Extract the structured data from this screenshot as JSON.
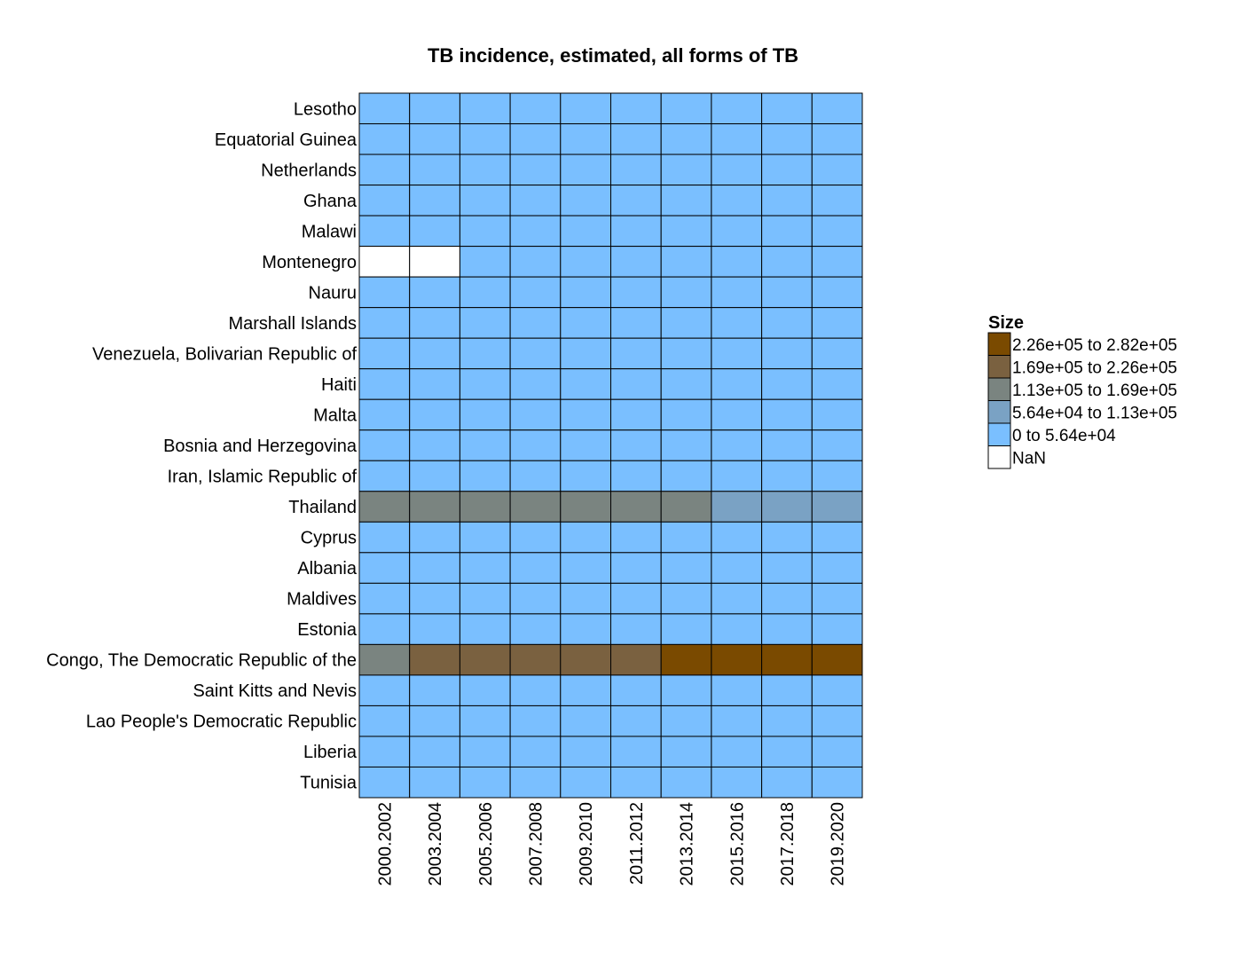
{
  "chart_data": {
    "type": "heatmap",
    "title": "TB incidence, estimated, all forms of TB",
    "xlabel": "",
    "ylabel": "",
    "columns": [
      "2000.2002",
      "2003.2004",
      "2005.2006",
      "2007.2008",
      "2009.2010",
      "2011.2012",
      "2013.2014",
      "2015.2016",
      "2017.2018",
      "2019.2020"
    ],
    "rows": [
      "Lesotho",
      "Equatorial Guinea",
      "Netherlands",
      "Ghana",
      "Malawi",
      "Montenegro",
      "Nauru",
      "Marshall Islands",
      "Venezuela, Bolivarian Republic of",
      "Haiti",
      "Malta",
      "Bosnia and Herzegovina",
      "Iran, Islamic Republic of",
      "Thailand",
      "Cyprus",
      "Albania",
      "Maldives",
      "Estonia",
      "Congo, The Democratic Republic of the",
      "Saint Kitts and Nevis",
      "Lao People's Democratic Republic",
      "Liberia",
      "Tunisia"
    ],
    "legend": {
      "title": "Size",
      "position": "right",
      "bins": [
        {
          "label": "2.26e+05 to 2.82e+05",
          "color": "#7a4a00"
        },
        {
          "label": "1.69e+05 to 2.26e+05",
          "color": "#7a6140"
        },
        {
          "label": "1.13e+05 to 1.69e+05",
          "color": "#7a8480"
        },
        {
          "label": "5.64e+04 to 1.13e+05",
          "color": "#7aa2c4"
        },
        {
          "label": "0 to 5.64e+04",
          "color": "#7abfff"
        },
        {
          "label": "NaN",
          "color": "#ffffff"
        }
      ]
    },
    "bin_index_matrix": [
      [
        4,
        4,
        4,
        4,
        4,
        4,
        4,
        4,
        4,
        4
      ],
      [
        4,
        4,
        4,
        4,
        4,
        4,
        4,
        4,
        4,
        4
      ],
      [
        4,
        4,
        4,
        4,
        4,
        4,
        4,
        4,
        4,
        4
      ],
      [
        4,
        4,
        4,
        4,
        4,
        4,
        4,
        4,
        4,
        4
      ],
      [
        4,
        4,
        4,
        4,
        4,
        4,
        4,
        4,
        4,
        4
      ],
      [
        5,
        5,
        4,
        4,
        4,
        4,
        4,
        4,
        4,
        4
      ],
      [
        4,
        4,
        4,
        4,
        4,
        4,
        4,
        4,
        4,
        4
      ],
      [
        4,
        4,
        4,
        4,
        4,
        4,
        4,
        4,
        4,
        4
      ],
      [
        4,
        4,
        4,
        4,
        4,
        4,
        4,
        4,
        4,
        4
      ],
      [
        4,
        4,
        4,
        4,
        4,
        4,
        4,
        4,
        4,
        4
      ],
      [
        4,
        4,
        4,
        4,
        4,
        4,
        4,
        4,
        4,
        4
      ],
      [
        4,
        4,
        4,
        4,
        4,
        4,
        4,
        4,
        4,
        4
      ],
      [
        4,
        4,
        4,
        4,
        4,
        4,
        4,
        4,
        4,
        4
      ],
      [
        2,
        2,
        2,
        2,
        2,
        2,
        2,
        3,
        3,
        3
      ],
      [
        4,
        4,
        4,
        4,
        4,
        4,
        4,
        4,
        4,
        4
      ],
      [
        4,
        4,
        4,
        4,
        4,
        4,
        4,
        4,
        4,
        4
      ],
      [
        4,
        4,
        4,
        4,
        4,
        4,
        4,
        4,
        4,
        4
      ],
      [
        4,
        4,
        4,
        4,
        4,
        4,
        4,
        4,
        4,
        4
      ],
      [
        2,
        1,
        1,
        1,
        1,
        1,
        0,
        0,
        0,
        0
      ],
      [
        4,
        4,
        4,
        4,
        4,
        4,
        4,
        4,
        4,
        4
      ],
      [
        4,
        4,
        4,
        4,
        4,
        4,
        4,
        4,
        4,
        4
      ],
      [
        4,
        4,
        4,
        4,
        4,
        4,
        4,
        4,
        4,
        4
      ],
      [
        4,
        4,
        4,
        4,
        4,
        4,
        4,
        4,
        4,
        4
      ]
    ]
  }
}
